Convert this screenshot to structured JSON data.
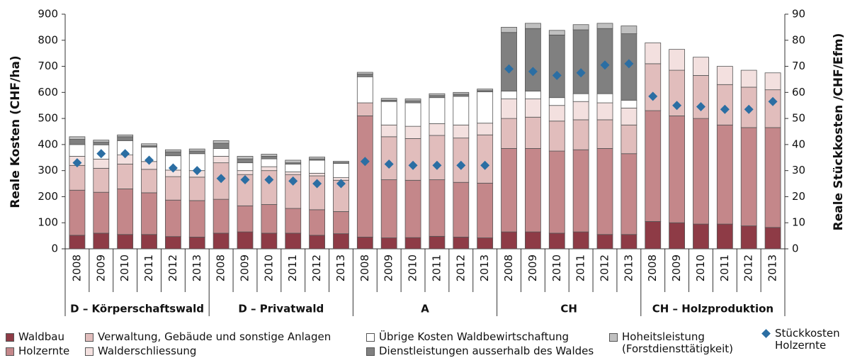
{
  "chart_data": {
    "type": "bar",
    "stacked": true,
    "y_label": "Reale Kosten (CHF/ha)",
    "y2_label": "Reale Stückkosten /CHF/Efm)",
    "categories": [
      "2008",
      "2009",
      "2010",
      "2011",
      "2012",
      "2013",
      "2008",
      "2009",
      "2010",
      "2011",
      "2012",
      "2013",
      "2008",
      "2009",
      "2010",
      "2011",
      "2012",
      "2013",
      "2008",
      "2009",
      "2010",
      "2011",
      "2012",
      "2013",
      "2008",
      "2009",
      "2010",
      "2011",
      "2012",
      "2013"
    ],
    "groups": [
      "D – Körperschaftswald",
      "D – Privatwald",
      "A",
      "CH",
      "CH – Holzproduktion"
    ],
    "ylim": [
      0,
      900
    ],
    "yticks": [
      0,
      100,
      200,
      300,
      400,
      500,
      600,
      700,
      800,
      900
    ],
    "y2lim": [
      0,
      90
    ],
    "y2ticks": [
      0,
      10,
      20,
      30,
      40,
      50,
      60,
      70,
      80,
      90
    ],
    "series": [
      {
        "name": "Waldbau",
        "color": "#8e3b46",
        "values": [
          52,
          60,
          55,
          55,
          47,
          45,
          60,
          65,
          60,
          60,
          52,
          58,
          45,
          42,
          43,
          48,
          45,
          42,
          65,
          65,
          60,
          65,
          55,
          55,
          105,
          100,
          95,
          95,
          88,
          82
        ]
      },
      {
        "name": "Holzernte",
        "color": "#c4878a",
        "values": [
          173,
          157,
          175,
          160,
          140,
          140,
          130,
          100,
          110,
          95,
          98,
          85,
          465,
          223,
          220,
          217,
          210,
          210,
          320,
          320,
          315,
          315,
          330,
          310,
          425,
          410,
          405,
          380,
          377,
          383
        ]
      },
      {
        "name": "Verwaltung, Gebäude und sonstige Anlagen",
        "color": "#e1bdbc",
        "values": [
          95,
          92,
          95,
          90,
          90,
          90,
          140,
          120,
          130,
          130,
          130,
          120,
          50,
          165,
          160,
          170,
          170,
          185,
          115,
          120,
          115,
          115,
          110,
          110,
          180,
          175,
          165,
          155,
          155,
          145
        ]
      },
      {
        "name": "Walderschliessung",
        "color": "#f3e0df",
        "values": [
          35,
          35,
          35,
          30,
          25,
          25,
          25,
          15,
          15,
          10,
          10,
          10,
          0,
          45,
          47,
          45,
          50,
          45,
          75,
          70,
          60,
          70,
          65,
          65,
          80,
          80,
          70,
          70,
          65,
          65
        ]
      },
      {
        "name": "Übrige Kosten Waldbewirtschaftung",
        "color": "#ffffff",
        "values": [
          45,
          55,
          55,
          55,
          55,
          65,
          30,
          30,
          30,
          30,
          50,
          55,
          100,
          90,
          90,
          100,
          110,
          120,
          30,
          30,
          30,
          30,
          35,
          30,
          0,
          0,
          0,
          0,
          0,
          0
        ]
      },
      {
        "name": "Dienstleistungen ausserhalb des Waldes",
        "color": "#808080",
        "values": [
          20,
          10,
          15,
          5,
          15,
          10,
          20,
          15,
          10,
          5,
          5,
          3,
          10,
          5,
          8,
          8,
          8,
          5,
          225,
          240,
          240,
          245,
          250,
          255,
          0,
          0,
          0,
          0,
          0,
          0
        ]
      },
      {
        "name": "Hoheitsleistung (Forstdiensttätigkeit)",
        "color": "#c0c0c0",
        "values": [
          10,
          8,
          7,
          8,
          8,
          8,
          10,
          10,
          8,
          10,
          7,
          5,
          7,
          7,
          7,
          7,
          7,
          6,
          20,
          20,
          18,
          20,
          20,
          30,
          0,
          0,
          0,
          0,
          0,
          0
        ]
      },
      {
        "name": "Stückkosten Holzernte",
        "color": "#2b6ea3",
        "axis": "y2",
        "type": "scatter",
        "values": [
          33,
          36.5,
          36.5,
          34,
          31,
          30,
          27,
          26.5,
          26.5,
          26,
          25,
          25,
          33.5,
          32.5,
          32,
          32,
          32,
          32,
          69,
          68,
          66.5,
          67.5,
          70.5,
          71,
          58.5,
          55,
          54.5,
          53.5,
          53.5,
          56.5
        ]
      }
    ]
  }
}
